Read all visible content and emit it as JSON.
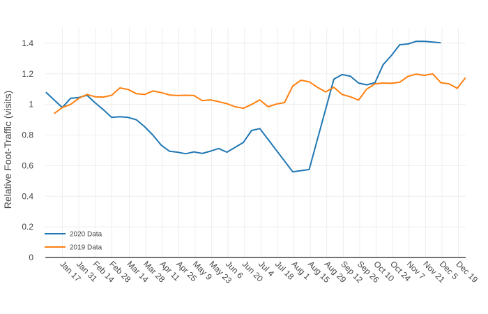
{
  "chart_data": {
    "type": "line",
    "xlabel": "",
    "ylabel": "Relative Foot-Traffic (visits)",
    "ylim": [
      0,
      1.5
    ],
    "y_ticks": [
      0,
      0.2,
      0.4,
      0.6,
      0.8,
      1,
      1.2,
      1.4
    ],
    "x_ticks": [
      "Jan 17",
      "Jan 31",
      "Feb 14",
      "Feb 28",
      "Mar 14",
      "Mar 28",
      "Apr 11",
      "Apr 25",
      "May 9",
      "May 23",
      "Jun 6",
      "Jun 20",
      "Jul 4",
      "Jul 18",
      "Aug 1",
      "Aug 15",
      "Aug 29",
      "Sep 12",
      "Sep 26",
      "Oct 10",
      "Oct 24",
      "Nov 7",
      "Nov 21",
      "Dec 5",
      "Dec 19"
    ],
    "grid": true,
    "legend_position": "bottom-left",
    "series": [
      {
        "name": "2020 Data",
        "color": "#1f77b4",
        "points": [
          [
            "Jan 3",
            1.08
          ],
          [
            "Jan 10",
            1.03
          ],
          [
            "Jan 17",
            0.98
          ],
          [
            "Jan 24",
            1.04
          ],
          [
            "Jan 31",
            1.045
          ],
          [
            "Feb 7",
            1.06
          ],
          [
            "Feb 14",
            1.01
          ],
          [
            "Feb 21",
            0.965
          ],
          [
            "Feb 28",
            0.915
          ],
          [
            "Mar 6",
            0.92
          ],
          [
            "Mar 13",
            0.915
          ],
          [
            "Mar 20",
            0.9
          ],
          [
            "Mar 27",
            0.855
          ],
          [
            "Apr 3",
            0.8
          ],
          [
            "Apr 10",
            0.735
          ],
          [
            "Apr 17",
            0.695
          ],
          [
            "Apr 24",
            0.688
          ],
          [
            "May 1",
            0.678
          ],
          [
            "May 8",
            0.69
          ],
          [
            "May 15",
            0.68
          ],
          [
            "May 22",
            0.695
          ],
          [
            "May 29",
            0.712
          ],
          [
            "Jun 5",
            0.688
          ],
          [
            "Jun 12",
            0.72
          ],
          [
            "Jun 19",
            0.752
          ],
          [
            "Jun 26",
            0.83
          ],
          [
            "Jul 3",
            0.842
          ],
          [
            "Jul 31",
            0.56
          ],
          [
            "Aug 14",
            0.575
          ],
          [
            "Sep 4",
            1.165
          ],
          [
            "Sep 11",
            1.195
          ],
          [
            "Sep 18",
            1.185
          ],
          [
            "Sep 25",
            1.14
          ],
          [
            "Oct 2",
            1.128
          ],
          [
            "Oct 9",
            1.142
          ],
          [
            "Oct 16",
            1.26
          ],
          [
            "Oct 23",
            1.32
          ],
          [
            "Oct 30",
            1.39
          ],
          [
            "Nov 6",
            1.395
          ],
          [
            "Nov 13",
            1.412
          ],
          [
            "Nov 20",
            1.412
          ],
          [
            "Nov 27",
            1.408
          ],
          [
            "Dec 4",
            1.403
          ]
        ]
      },
      {
        "name": "2019 Data",
        "color": "#ff7f0e",
        "points": [
          [
            "Jan 10",
            0.94
          ],
          [
            "Jan 17",
            0.98
          ],
          [
            "Jan 24",
            1.0
          ],
          [
            "Jan 31",
            1.04
          ],
          [
            "Feb 7",
            1.065
          ],
          [
            "Feb 14",
            1.05
          ],
          [
            "Feb 21",
            1.048
          ],
          [
            "Feb 28",
            1.06
          ],
          [
            "Mar 6",
            1.108
          ],
          [
            "Mar 13",
            1.098
          ],
          [
            "Mar 20",
            1.07
          ],
          [
            "Mar 27",
            1.065
          ],
          [
            "Apr 3",
            1.088
          ],
          [
            "Apr 10",
            1.078
          ],
          [
            "Apr 17",
            1.062
          ],
          [
            "Apr 24",
            1.058
          ],
          [
            "May 1",
            1.06
          ],
          [
            "May 8",
            1.058
          ],
          [
            "May 15",
            1.025
          ],
          [
            "May 22",
            1.03
          ],
          [
            "May 29",
            1.018
          ],
          [
            "Jun 5",
            1.005
          ],
          [
            "Jun 12",
            0.985
          ],
          [
            "Jun 19",
            0.975
          ],
          [
            "Jun 26",
            1.0
          ],
          [
            "Jul 3",
            1.03
          ],
          [
            "Jul 10",
            0.985
          ],
          [
            "Jul 17",
            1.002
          ],
          [
            "Jul 24",
            1.012
          ],
          [
            "Jul 31",
            1.12
          ],
          [
            "Aug 7",
            1.158
          ],
          [
            "Aug 14",
            1.148
          ],
          [
            "Aug 21",
            1.112
          ],
          [
            "Aug 28",
            1.082
          ],
          [
            "Sep 4",
            1.112
          ],
          [
            "Sep 11",
            1.065
          ],
          [
            "Sep 18",
            1.05
          ],
          [
            "Sep 25",
            1.028
          ],
          [
            "Oct 2",
            1.1
          ],
          [
            "Oct 9",
            1.135
          ],
          [
            "Oct 16",
            1.14
          ],
          [
            "Oct 23",
            1.138
          ],
          [
            "Oct 30",
            1.145
          ],
          [
            "Nov 6",
            1.183
          ],
          [
            "Nov 13",
            1.198
          ],
          [
            "Nov 20",
            1.19
          ],
          [
            "Nov 27",
            1.2
          ],
          [
            "Dec 4",
            1.142
          ],
          [
            "Dec 11",
            1.135
          ],
          [
            "Dec 18",
            1.105
          ],
          [
            "Dec 25",
            1.175
          ]
        ]
      }
    ]
  }
}
